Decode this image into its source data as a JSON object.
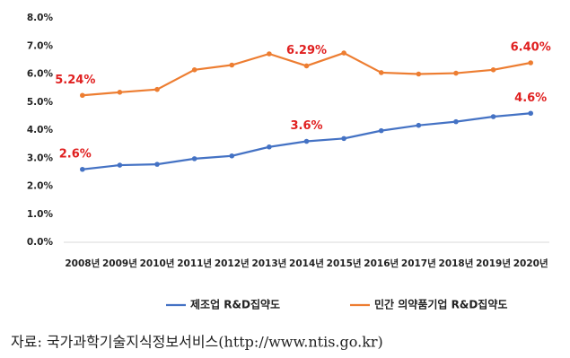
{
  "chart_data": {
    "type": "line",
    "categories": [
      "2008년",
      "2009년",
      "2010년",
      "2011년",
      "2012년",
      "2013년",
      "2014년",
      "2015년",
      "2016년",
      "2017년",
      "2018년",
      "2019년",
      "2020년"
    ],
    "series": [
      {
        "name": "제조업 R&D집약도",
        "color": "#4472c4",
        "values": [
          2.6,
          2.75,
          2.78,
          2.98,
          3.08,
          3.4,
          3.6,
          3.7,
          3.98,
          4.17,
          4.3,
          4.48,
          4.6
        ],
        "value_labels": [
          "2.6%",
          null,
          null,
          null,
          null,
          null,
          "3.6%",
          null,
          null,
          null,
          null,
          null,
          "4.6%"
        ]
      },
      {
        "name": "민간 의약품기업 R&D집약도",
        "color": "#ed7d31",
        "values": [
          5.24,
          5.35,
          5.45,
          6.15,
          6.32,
          6.72,
          6.29,
          6.75,
          6.05,
          6.0,
          6.03,
          6.15,
          6.4
        ],
        "value_labels": [
          "5.24%",
          null,
          null,
          null,
          null,
          null,
          "6.29%",
          null,
          null,
          null,
          null,
          null,
          "6.40%"
        ]
      }
    ],
    "ylim": [
      0,
      8
    ],
    "yticks": [
      {
        "value": 0,
        "label": "0.0%"
      },
      {
        "value": 1,
        "label": "1.0%"
      },
      {
        "value": 2,
        "label": "2.0%"
      },
      {
        "value": 3,
        "label": "3.0%"
      },
      {
        "value": 4,
        "label": "4.0%"
      },
      {
        "value": 5,
        "label": "5.0%"
      },
      {
        "value": 6,
        "label": "6.0%"
      },
      {
        "value": 7,
        "label": "7.0%"
      },
      {
        "value": 8,
        "label": "8.0%"
      }
    ],
    "grid": false,
    "label_color": "#e02020"
  },
  "source": "자료: 국가과학기술지식정보서비스(http://www.ntis.go.kr)"
}
